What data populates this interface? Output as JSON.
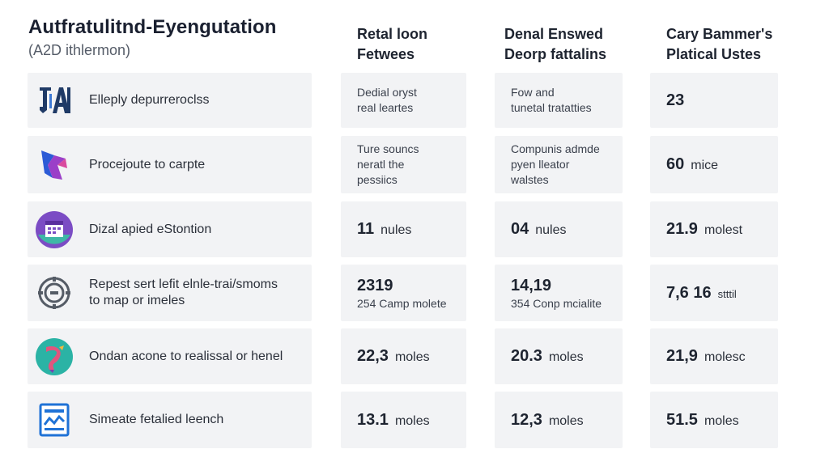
{
  "header": {
    "title": "Autfratulitnd-Eyengutation",
    "subtitle": "(A2D ithlermon)"
  },
  "columns": [
    {
      "line1": "Retal loon",
      "line2": "Fetwees"
    },
    {
      "line1": "Denal Enswed",
      "line2": "Deorp fattalins"
    },
    {
      "line1": "Cary Bammer's",
      "line2": "Platical Ustes"
    }
  ],
  "rows": [
    {
      "icon": "letter-logo-icon",
      "label": "Elleply depurreroclss",
      "c1": {
        "lines": [
          "Dedial oryst",
          "real leartes"
        ]
      },
      "c2": {
        "lines": [
          "Fow and",
          "tunetal tratatties"
        ]
      },
      "c3": {
        "value": "23",
        "unit": ""
      }
    },
    {
      "icon": "ribbon-logo-icon",
      "label": "Procejoute to carpte",
      "c1": {
        "lines": [
          "Ture souncs",
          "neratl the",
          "pessiics"
        ]
      },
      "c2": {
        "lines": [
          "Compunis admde",
          "pyen lleator",
          "walstes"
        ]
      },
      "c3": {
        "value": "60",
        "unit": "mice"
      }
    },
    {
      "icon": "calendar-badge-icon",
      "label": "Dizal apied eStontion",
      "c1": {
        "value": "11",
        "unit": "nules"
      },
      "c2": {
        "value": "04",
        "unit": "nules"
      },
      "c3": {
        "value": "21.9",
        "unit": "molest"
      }
    },
    {
      "icon": "gear-icon",
      "label_lines": [
        "Repest sert lefit elnle-trai/smoms",
        "to map or imeles"
      ],
      "c1": {
        "value": "2319",
        "sub": "254 Camp molete"
      },
      "c2": {
        "value": "14,19",
        "sub": "354 Conp mcialite"
      },
      "c3": {
        "value": "7,6  16",
        "unit": "stttil"
      }
    },
    {
      "icon": "colorful-brush-icon",
      "label": "Ondan acone to realissal or henel",
      "c1": {
        "value": "22,3",
        "unit": "moles"
      },
      "c2": {
        "value": "20.3",
        "unit": "moles"
      },
      "c3": {
        "value": "21,9",
        "unit": "molesc"
      }
    },
    {
      "icon": "blue-document-icon",
      "label": "Simeate fetalied leench",
      "c1": {
        "value": "13.1",
        "unit": "moles"
      },
      "c2": {
        "value": "12,3",
        "unit": "moles"
      },
      "c3": {
        "value": "51.5",
        "unit": "moles"
      }
    }
  ],
  "colors": {
    "cell_bg": "#f2f3f5",
    "text": "#1e2430",
    "icon_navy": "#1f3a66",
    "icon_purple": "#7a3fb0",
    "icon_blue": "#1f72d6",
    "icon_teal": "#2bb3a5"
  }
}
